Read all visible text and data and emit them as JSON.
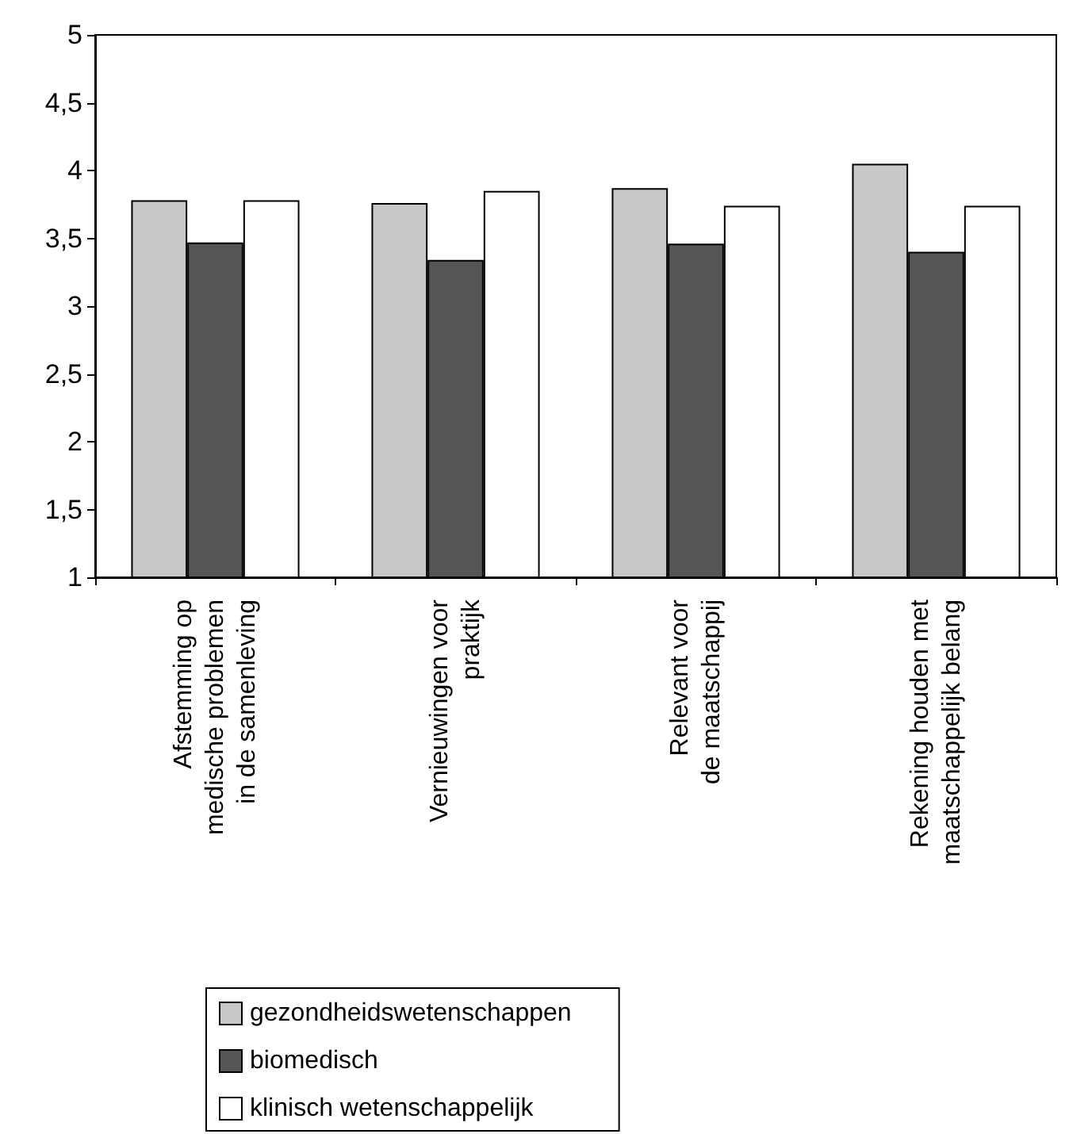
{
  "chart_data": {
    "type": "bar",
    "categories": [
      "Afstemming op\nmedische problemen\nin de samenleving",
      "Vernieuwingen voor\npraktijk",
      "Relevant voor\nde maatschappij",
      "Rekening houden met\nmaatschappelijk belang"
    ],
    "series": [
      {
        "name": "gezondheidswetenschappen",
        "color": "#c8c8c8",
        "values": [
          3.78,
          3.76,
          3.87,
          4.05
        ]
      },
      {
        "name": "biomedisch",
        "color": "#555555",
        "values": [
          3.47,
          3.34,
          3.46,
          3.4
        ]
      },
      {
        "name": "klinisch wetenschappelijk",
        "color": "#ffffff",
        "values": [
          3.78,
          3.85,
          3.74,
          3.74
        ]
      }
    ],
    "ylim": [
      1,
      5
    ],
    "yticks": [
      {
        "value": 1,
        "label": "1"
      },
      {
        "value": 1.5,
        "label": "1,5"
      },
      {
        "value": 2,
        "label": "2"
      },
      {
        "value": 2.5,
        "label": "2,5"
      },
      {
        "value": 3,
        "label": "3"
      },
      {
        "value": 3.5,
        "label": "3,5"
      },
      {
        "value": 4,
        "label": "4"
      },
      {
        "value": 4.5,
        "label": "4,5"
      },
      {
        "value": 5,
        "label": "5"
      }
    ],
    "grid": false,
    "legend": "bottom left"
  }
}
